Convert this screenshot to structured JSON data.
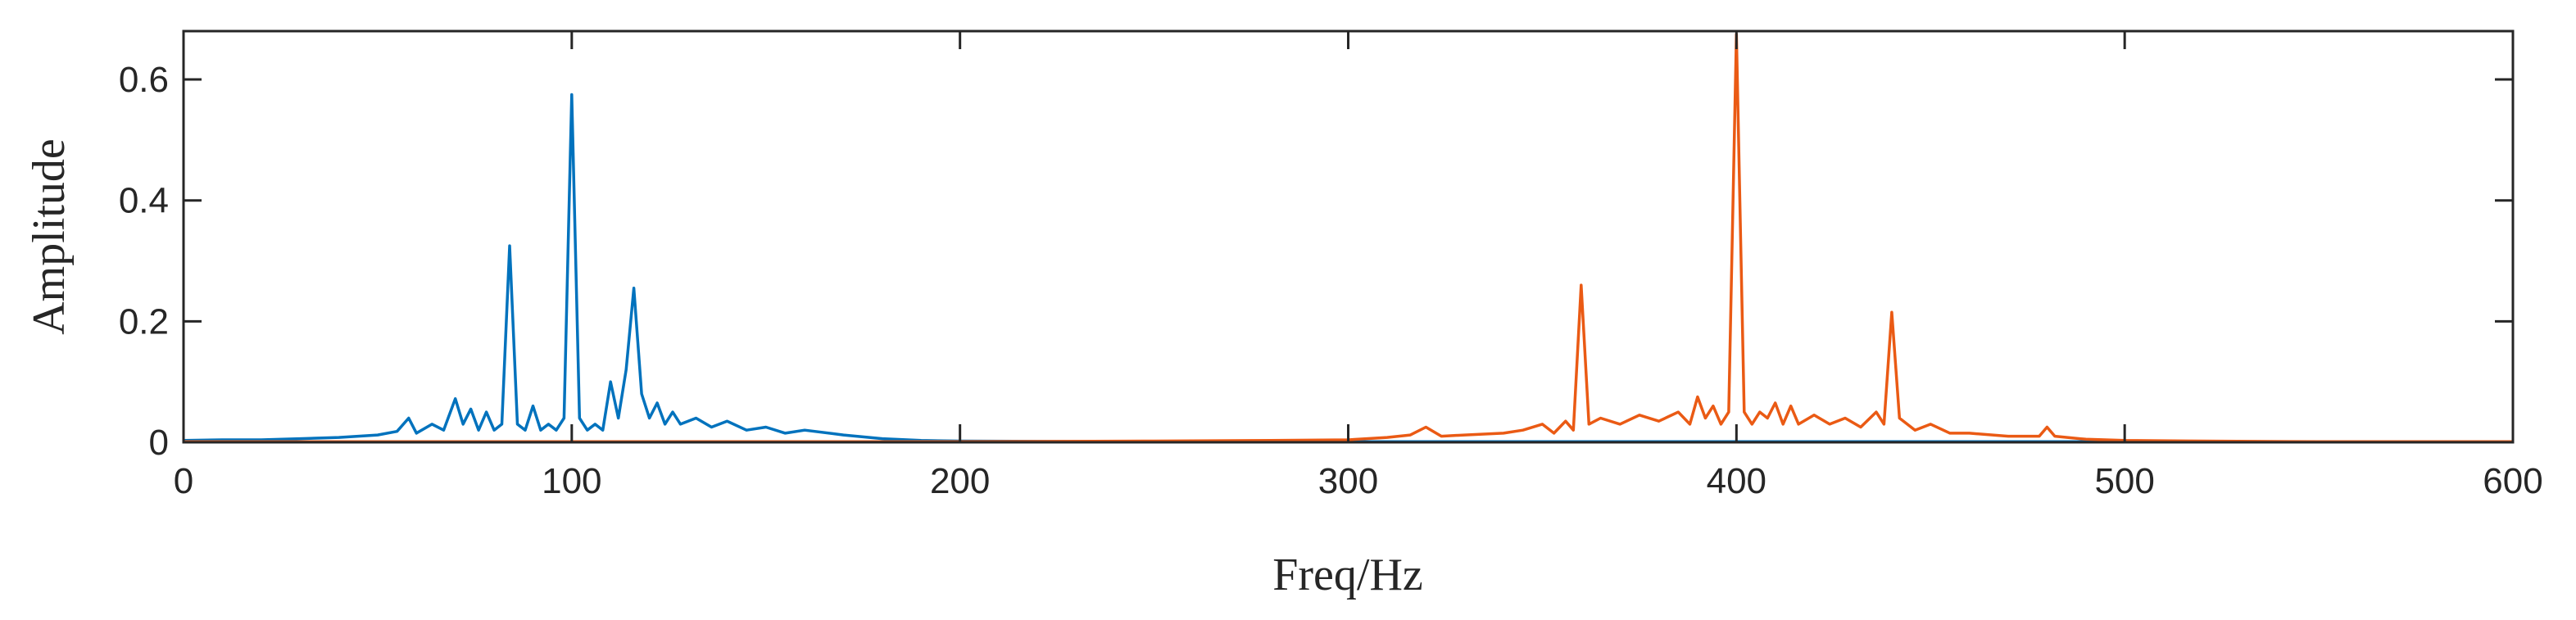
{
  "chart_data": {
    "type": "line",
    "title": "",
    "xlabel": "Freq/Hz",
    "ylabel": "Amplitude",
    "xlim": [
      0,
      600
    ],
    "ylim": [
      0,
      0.68
    ],
    "x_ticks": [
      0,
      100,
      200,
      300,
      400,
      500,
      600
    ],
    "x_tick_labels": [
      "0",
      "100",
      "200",
      "300",
      "400",
      "500",
      "600"
    ],
    "y_ticks": [
      0,
      0.2,
      0.4,
      0.6
    ],
    "y_tick_labels": [
      "0",
      "0.2",
      "0.4",
      "0.6"
    ],
    "grid": false,
    "legend": "none",
    "series": [
      {
        "color": "#0072BD",
        "points": [
          [
            0,
            0.003
          ],
          [
            10,
            0.004
          ],
          [
            20,
            0.004
          ],
          [
            30,
            0.006
          ],
          [
            40,
            0.008
          ],
          [
            50,
            0.012
          ],
          [
            55,
            0.018
          ],
          [
            58,
            0.04
          ],
          [
            60,
            0.015
          ],
          [
            64,
            0.03
          ],
          [
            67,
            0.02
          ],
          [
            70,
            0.072
          ],
          [
            72,
            0.03
          ],
          [
            74,
            0.055
          ],
          [
            76,
            0.02
          ],
          [
            78,
            0.05
          ],
          [
            80,
            0.02
          ],
          [
            82,
            0.03
          ],
          [
            84,
            0.325
          ],
          [
            86,
            0.03
          ],
          [
            88,
            0.02
          ],
          [
            90,
            0.06
          ],
          [
            92,
            0.02
          ],
          [
            94,
            0.03
          ],
          [
            96,
            0.02
          ],
          [
            98,
            0.04
          ],
          [
            100,
            0.575
          ],
          [
            102,
            0.04
          ],
          [
            104,
            0.02
          ],
          [
            106,
            0.03
          ],
          [
            108,
            0.02
          ],
          [
            110,
            0.1
          ],
          [
            112,
            0.04
          ],
          [
            114,
            0.12
          ],
          [
            116,
            0.255
          ],
          [
            118,
            0.08
          ],
          [
            120,
            0.04
          ],
          [
            122,
            0.065
          ],
          [
            124,
            0.03
          ],
          [
            126,
            0.05
          ],
          [
            128,
            0.03
          ],
          [
            132,
            0.04
          ],
          [
            136,
            0.025
          ],
          [
            140,
            0.035
          ],
          [
            145,
            0.02
          ],
          [
            150,
            0.025
          ],
          [
            155,
            0.015
          ],
          [
            160,
            0.02
          ],
          [
            170,
            0.012
          ],
          [
            180,
            0.006
          ],
          [
            190,
            0.003
          ],
          [
            200,
            0.002
          ],
          [
            250,
            0.001
          ],
          [
            300,
            0.001
          ],
          [
            350,
            0.001
          ],
          [
            400,
            0.001
          ],
          [
            450,
            0.001
          ],
          [
            500,
            0.001
          ],
          [
            550,
            0.001
          ],
          [
            600,
            0.001
          ]
        ]
      },
      {
        "color": "#EA5A14",
        "points": [
          [
            0,
            0.001
          ],
          [
            100,
            0.001
          ],
          [
            200,
            0.001
          ],
          [
            250,
            0.002
          ],
          [
            280,
            0.003
          ],
          [
            300,
            0.004
          ],
          [
            310,
            0.008
          ],
          [
            316,
            0.012
          ],
          [
            320,
            0.025
          ],
          [
            324,
            0.01
          ],
          [
            330,
            0.012
          ],
          [
            340,
            0.015
          ],
          [
            345,
            0.02
          ],
          [
            350,
            0.03
          ],
          [
            353,
            0.015
          ],
          [
            356,
            0.035
          ],
          [
            358,
            0.02
          ],
          [
            360,
            0.26
          ],
          [
            362,
            0.03
          ],
          [
            365,
            0.04
          ],
          [
            370,
            0.03
          ],
          [
            375,
            0.045
          ],
          [
            380,
            0.035
          ],
          [
            385,
            0.05
          ],
          [
            388,
            0.03
          ],
          [
            390,
            0.075
          ],
          [
            392,
            0.04
          ],
          [
            394,
            0.06
          ],
          [
            396,
            0.03
          ],
          [
            398,
            0.05
          ],
          [
            400,
            0.675
          ],
          [
            402,
            0.05
          ],
          [
            404,
            0.03
          ],
          [
            406,
            0.05
          ],
          [
            408,
            0.04
          ],
          [
            410,
            0.065
          ],
          [
            412,
            0.03
          ],
          [
            414,
            0.06
          ],
          [
            416,
            0.03
          ],
          [
            420,
            0.045
          ],
          [
            424,
            0.03
          ],
          [
            428,
            0.04
          ],
          [
            432,
            0.025
          ],
          [
            436,
            0.05
          ],
          [
            438,
            0.03
          ],
          [
            440,
            0.215
          ],
          [
            442,
            0.04
          ],
          [
            446,
            0.02
          ],
          [
            450,
            0.03
          ],
          [
            455,
            0.015
          ],
          [
            460,
            0.015
          ],
          [
            470,
            0.01
          ],
          [
            478,
            0.01
          ],
          [
            480,
            0.025
          ],
          [
            482,
            0.01
          ],
          [
            490,
            0.005
          ],
          [
            500,
            0.003
          ],
          [
            520,
            0.002
          ],
          [
            550,
            0.001
          ],
          [
            600,
            0.001
          ]
        ]
      }
    ]
  }
}
